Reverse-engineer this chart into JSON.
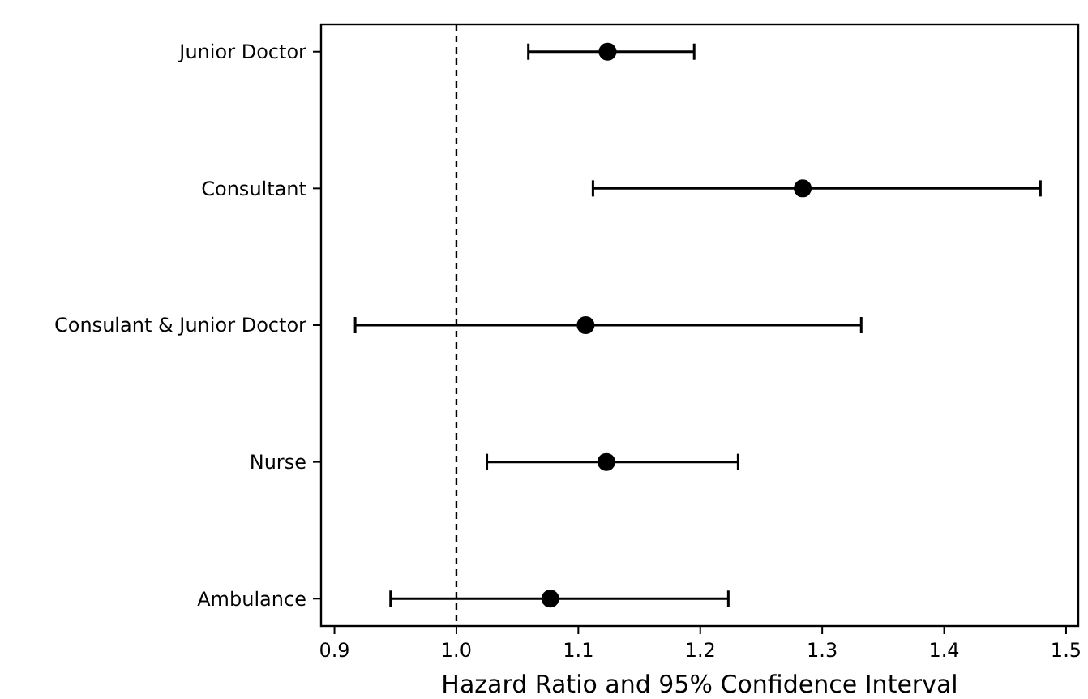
{
  "chart_data": {
    "type": "scatter",
    "orientation": "horizontal",
    "xlabel": "Hazard Ratio and 95% Confidence Interval",
    "categories": [
      "Junior Doctor",
      "Consultant",
      "Consulant & Junior Doctor",
      "Nurse",
      "Ambulance"
    ],
    "values": [
      1.124,
      1.284,
      1.106,
      1.123,
      1.077
    ],
    "errors": [
      [
        1.059,
        1.195
      ],
      [
        1.112,
        1.479
      ],
      [
        0.917,
        1.332
      ],
      [
        1.025,
        1.231
      ],
      [
        0.946,
        1.223
      ]
    ],
    "color": "#000000",
    "marker": "circle",
    "grid": false,
    "xlim": [
      0.889,
      1.51
    ],
    "xticks": [
      {
        "value": 0.9,
        "label": "0.9"
      },
      {
        "value": 1.0,
        "label": "1.0"
      },
      {
        "value": 1.1,
        "label": "1.1"
      },
      {
        "value": 1.2,
        "label": "1.2"
      },
      {
        "value": 1.3,
        "label": "1.3"
      },
      {
        "value": 1.4,
        "label": "1.4"
      },
      {
        "value": 1.5,
        "label": "1.5"
      }
    ],
    "ref_lines": [
      {
        "axis": "x",
        "value": 1.0,
        "line_style": "dashed",
        "color": "#000000"
      }
    ]
  }
}
